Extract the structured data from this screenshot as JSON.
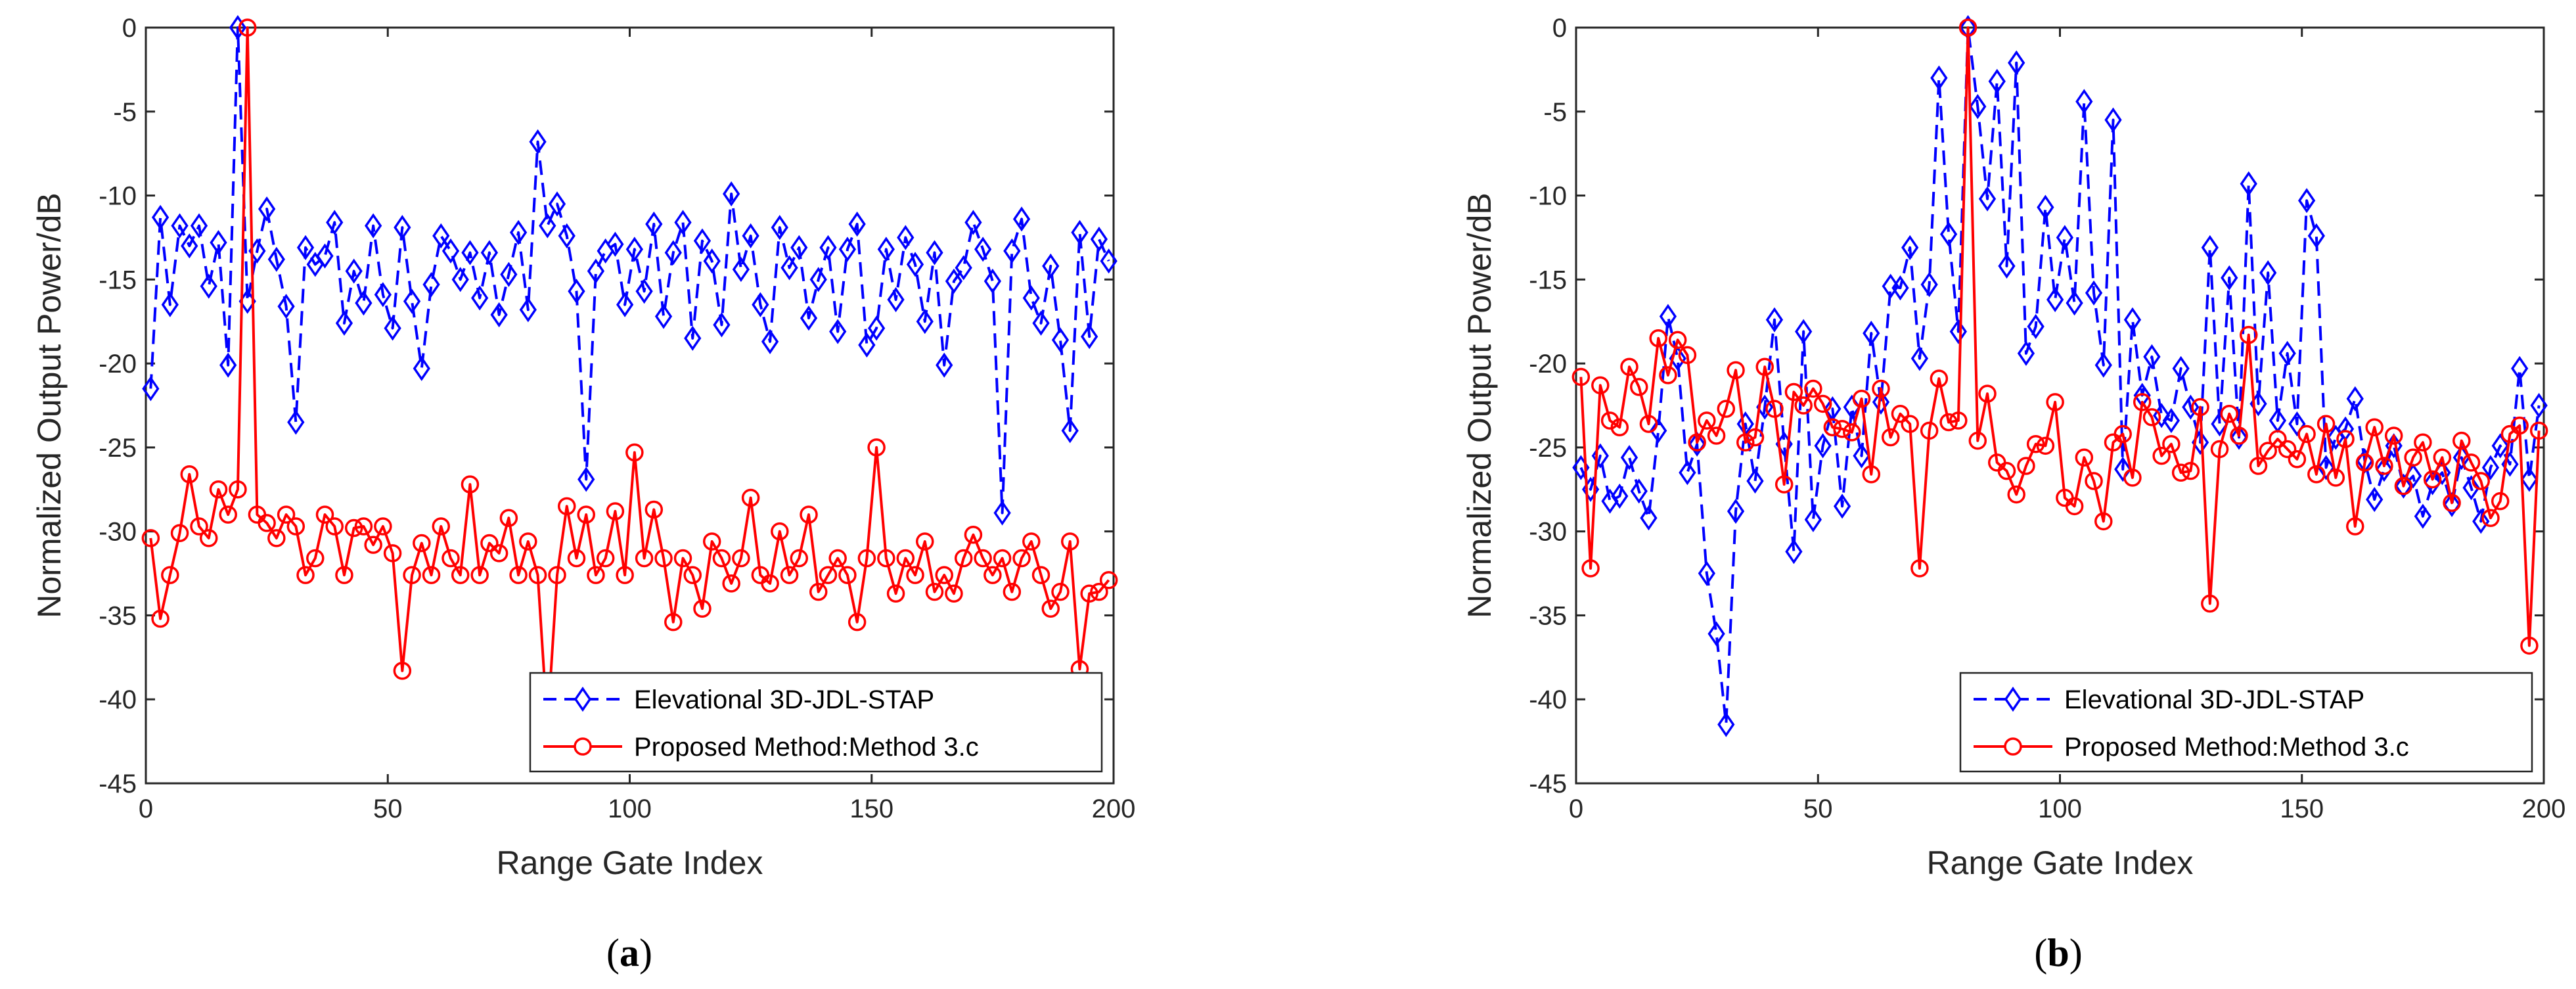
{
  "chart_data": [
    {
      "type": "line",
      "panel_label": "a",
      "xlabel": "Range Gate Index",
      "ylabel": "Normalized Output Power/dB",
      "xlim": [
        0,
        200
      ],
      "ylim": [
        -45,
        0
      ],
      "xticks": [
        0,
        50,
        100,
        150,
        200
      ],
      "yticks": [
        0,
        -5,
        -10,
        -15,
        -20,
        -25,
        -30,
        -35,
        -40,
        -45
      ],
      "grid": false,
      "legend_position": "bottom-right",
      "series": [
        {
          "name": "Elevational 3D-JDL-STAP",
          "color": "#0000ff",
          "style": "dashed",
          "marker": "diamond",
          "x": [
            1,
            3,
            5,
            7,
            9,
            11,
            13,
            15,
            17,
            19,
            21,
            23,
            25,
            27,
            29,
            31,
            33,
            35,
            37,
            39,
            41,
            43,
            45,
            47,
            49,
            51,
            53,
            55,
            57,
            59,
            61,
            63,
            65,
            67,
            69,
            71,
            73,
            75,
            77,
            79,
            81,
            83,
            85,
            87,
            89,
            91,
            93,
            95,
            97,
            99,
            101,
            103,
            105,
            107,
            109,
            111,
            113,
            115,
            117,
            119,
            121,
            123,
            125,
            127,
            129,
            131,
            133,
            135,
            137,
            139,
            141,
            143,
            145,
            147,
            149,
            151,
            153,
            155,
            157,
            159,
            161,
            163,
            165,
            167,
            169,
            171,
            173,
            175,
            177,
            179,
            181,
            183,
            185,
            187,
            189,
            191,
            193,
            195,
            197,
            199
          ],
          "y": [
            -21.5,
            -11.3,
            -16.5,
            -11.8,
            -13,
            -11.8,
            -15.4,
            -12.8,
            -20.1,
            0,
            -16.3,
            -13.3,
            -10.8,
            -13.8,
            -16.6,
            -23.5,
            -13.1,
            -14.1,
            -13.6,
            -11.6,
            -17.6,
            -14.5,
            -16.4,
            -11.8,
            -15.9,
            -17.9,
            -11.9,
            -16.3,
            -20.3,
            -15.3,
            -12.4,
            -13.3,
            -15,
            -13.4,
            -16.1,
            -13.4,
            -17.1,
            -14.7,
            -12.2,
            -16.8,
            -6.8,
            -11.8,
            -10.5,
            -12.4,
            -15.7,
            -26.9,
            -14.5,
            -13.3,
            -12.9,
            -16.5,
            -13.2,
            -15.7,
            -11.7,
            -17.2,
            -13.4,
            -11.6,
            -18.5,
            -12.7,
            -13.9,
            -17.7,
            -9.9,
            -14.4,
            -12.4,
            -16.5,
            -18.7,
            -11.9,
            -14.3,
            -13.1,
            -17.3,
            -15,
            -13.1,
            -18.1,
            -13.2,
            -11.7,
            -18.9,
            -17.9,
            -13.2,
            -16.2,
            -12.5,
            -14.1,
            -17.5,
            -13.4,
            -20.1,
            -15.1,
            -14.3,
            -11.6,
            -13.2,
            -15.1,
            -28.9,
            -13.3,
            -11.4,
            -16.1,
            -17.6,
            -14.2,
            -18.6,
            -24,
            -12.2,
            -18.4,
            -12.6,
            -13.9
          ]
        },
        {
          "name": "Proposed Method:Method 3.c",
          "color": "#ff0000",
          "style": "solid",
          "marker": "circle",
          "x": [
            1,
            3,
            5,
            7,
            9,
            11,
            13,
            15,
            17,
            19,
            21,
            23,
            25,
            27,
            29,
            31,
            33,
            35,
            37,
            39,
            41,
            43,
            45,
            47,
            49,
            51,
            53,
            55,
            57,
            59,
            61,
            63,
            65,
            67,
            69,
            71,
            73,
            75,
            77,
            79,
            81,
            83,
            85,
            87,
            89,
            91,
            93,
            95,
            97,
            99,
            101,
            103,
            105,
            107,
            109,
            111,
            113,
            115,
            117,
            119,
            121,
            123,
            125,
            127,
            129,
            131,
            133,
            135,
            137,
            139,
            141,
            143,
            145,
            147,
            149,
            151,
            153,
            155,
            157,
            159,
            161,
            163,
            165,
            167,
            169,
            171,
            173,
            175,
            177,
            179,
            181,
            183,
            185,
            187,
            189,
            191,
            193,
            195,
            197,
            199
          ],
          "y": [
            -30.4,
            -35.2,
            -32.6,
            -30.1,
            -26.6,
            -29.7,
            -30.4,
            -27.5,
            -29,
            -27.5,
            0,
            -29,
            -29.5,
            -30.4,
            -29,
            -29.7,
            -32.6,
            -31.6,
            -29,
            -29.7,
            -32.6,
            -29.8,
            -29.7,
            -30.8,
            -29.7,
            -31.3,
            -38.3,
            -32.6,
            -30.7,
            -32.6,
            -29.7,
            -31.6,
            -32.6,
            -27.2,
            -32.6,
            -30.7,
            -31.3,
            -29.2,
            -32.6,
            -30.6,
            -32.6,
            -41.6,
            -32.6,
            -28.5,
            -31.6,
            -29,
            -32.6,
            -31.6,
            -28.8,
            -32.6,
            -25.3,
            -31.6,
            -28.7,
            -31.6,
            -35.4,
            -31.6,
            -32.6,
            -34.6,
            -30.6,
            -31.6,
            -33.1,
            -31.6,
            -28,
            -32.6,
            -33.1,
            -30,
            -32.6,
            -31.6,
            -29,
            -33.6,
            -32.6,
            -31.6,
            -32.6,
            -35.4,
            -31.6,
            -25,
            -31.6,
            -33.7,
            -31.6,
            -32.6,
            -30.6,
            -33.6,
            -32.6,
            -33.7,
            -31.6,
            -30.2,
            -31.6,
            -32.6,
            -31.6,
            -33.6,
            -31.6,
            -30.6,
            -32.6,
            -34.6,
            -33.6,
            -30.6,
            -38.2,
            -33.7,
            -33.6,
            -32.9
          ]
        }
      ]
    },
    {
      "type": "line",
      "panel_label": "b",
      "xlabel": "Range Gate Index",
      "ylabel": "Normalized Output Power/dB",
      "xlim": [
        0,
        200
      ],
      "ylim": [
        -45,
        0
      ],
      "xticks": [
        0,
        50,
        100,
        150,
        200
      ],
      "yticks": [
        0,
        -5,
        -10,
        -15,
        -20,
        -25,
        -30,
        -35,
        -40,
        -45
      ],
      "grid": false,
      "legend_position": "bottom-right",
      "series": [
        {
          "name": "Elevational 3D-JDL-STAP",
          "color": "#0000ff",
          "style": "dashed",
          "marker": "diamond",
          "x": [
            1,
            3,
            5,
            7,
            9,
            11,
            13,
            15,
            17,
            19,
            21,
            23,
            25,
            27,
            29,
            31,
            33,
            35,
            37,
            39,
            41,
            43,
            45,
            47,
            49,
            51,
            53,
            55,
            57,
            59,
            61,
            63,
            65,
            67,
            69,
            71,
            73,
            75,
            77,
            79,
            81,
            83,
            85,
            87,
            89,
            91,
            93,
            95,
            97,
            99,
            101,
            103,
            105,
            107,
            109,
            111,
            113,
            115,
            117,
            119,
            121,
            123,
            125,
            127,
            129,
            131,
            133,
            135,
            137,
            139,
            141,
            143,
            145,
            147,
            149,
            151,
            153,
            155,
            157,
            159,
            161,
            163,
            165,
            167,
            169,
            171,
            173,
            175,
            177,
            179,
            181,
            183,
            185,
            187,
            189,
            191,
            193,
            195,
            197,
            199
          ],
          "y": [
            -26.2,
            -27.5,
            -25.5,
            -28.2,
            -27.9,
            -25.6,
            -27.6,
            -29.2,
            -24,
            -17.2,
            -19.7,
            -26.5,
            -24.8,
            -32.5,
            -36.1,
            -41.5,
            -28.8,
            -23.6,
            -27,
            -22.6,
            -17.4,
            -24.8,
            -31.2,
            -18.1,
            -29.3,
            -24.9,
            -22.7,
            -28.5,
            -22.6,
            -25.5,
            -18.2,
            -22.3,
            -15.4,
            -15.5,
            -13.1,
            -19.7,
            -15.3,
            -3,
            -12.3,
            -18.1,
            0,
            -4.7,
            -10.2,
            -3.2,
            -14.2,
            -2.1,
            -19.4,
            -17.8,
            -10.7,
            -16.2,
            -12.5,
            -16.4,
            -4.4,
            -15.8,
            -20.1,
            -5.5,
            -26.3,
            -17.4,
            -21.9,
            -19.6,
            -23.1,
            -23.4,
            -20.3,
            -22.6,
            -24.7,
            -13.1,
            -23.6,
            -14.9,
            -24.4,
            -9.3,
            -22.4,
            -14.6,
            -23.4,
            -19.4,
            -23.6,
            -10.3,
            -12.4,
            -26.2,
            -24.4,
            -23.9,
            -22.1,
            -25.8,
            -28.1,
            -26.3,
            -24.9,
            -27.3,
            -26.7,
            -29.1,
            -27.1,
            -26.5,
            -28.4,
            -25.6,
            -27.4,
            -29.4,
            -26.2,
            -24.9,
            -26,
            -20.3,
            -26.9,
            -22.5
          ]
        },
        {
          "name": "Proposed Method:Method 3.c",
          "color": "#ff0000",
          "style": "solid",
          "marker": "circle",
          "x": [
            1,
            3,
            5,
            7,
            9,
            11,
            13,
            15,
            17,
            19,
            21,
            23,
            25,
            27,
            29,
            31,
            33,
            35,
            37,
            39,
            41,
            43,
            45,
            47,
            49,
            51,
            53,
            55,
            57,
            59,
            61,
            63,
            65,
            67,
            69,
            71,
            73,
            75,
            77,
            79,
            81,
            83,
            85,
            87,
            89,
            91,
            93,
            95,
            97,
            99,
            101,
            103,
            105,
            107,
            109,
            111,
            113,
            115,
            117,
            119,
            121,
            123,
            125,
            127,
            129,
            131,
            133,
            135,
            137,
            139,
            141,
            143,
            145,
            147,
            149,
            151,
            153,
            155,
            157,
            159,
            161,
            163,
            165,
            167,
            169,
            171,
            173,
            175,
            177,
            179,
            181,
            183,
            185,
            187,
            189,
            191,
            193,
            195,
            197,
            199
          ],
          "y": [
            -20.8,
            -32.2,
            -21.3,
            -23.4,
            -23.8,
            -20.2,
            -21.4,
            -23.6,
            -18.5,
            -20.7,
            -18.6,
            -19.5,
            -24.7,
            -23.4,
            -24.3,
            -22.7,
            -20.4,
            -24.7,
            -24.4,
            -20.2,
            -22.7,
            -27.2,
            -21.7,
            -22.5,
            -21.5,
            -22.4,
            -23.8,
            -23.9,
            -24.1,
            -22.1,
            -26.6,
            -21.5,
            -24.4,
            -23,
            -23.6,
            -32.2,
            -24,
            -20.9,
            -23.5,
            -23.4,
            0,
            -24.6,
            -21.8,
            -25.9,
            -26.4,
            -27.8,
            -26.1,
            -24.8,
            -24.9,
            -22.3,
            -28,
            -28.5,
            -25.6,
            -27,
            -29.4,
            -24.7,
            -24.2,
            -26.8,
            -22.3,
            -23.2,
            -25.5,
            -24.8,
            -26.5,
            -26.4,
            -22.6,
            -34.3,
            -25.1,
            -23,
            -24.3,
            -18.3,
            -26.1,
            -25.2,
            -24.5,
            -25.1,
            -25.7,
            -24.2,
            -26.6,
            -23.6,
            -26.8,
            -24.5,
            -29.7,
            -25.9,
            -23.8,
            -26.1,
            -24.3,
            -27.3,
            -25.6,
            -24.7,
            -26.9,
            -25.6,
            -28.3,
            -24.6,
            -25.9,
            -27,
            -29.2,
            -28.2,
            -24.2,
            -23.7,
            -36.8,
            -24
          ]
        }
      ]
    }
  ]
}
